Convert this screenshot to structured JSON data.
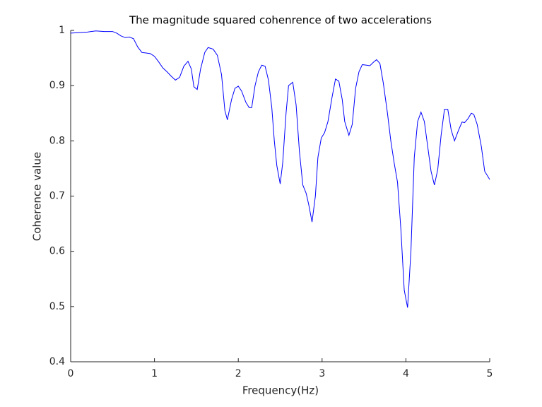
{
  "chart_data": {
    "type": "line",
    "title": "The magnitude squared cohenrence of two accelerations",
    "x_label": "Frequency(Hz)",
    "y_label": "Coherence value",
    "x": [
      0,
      0.1,
      0.2,
      0.3,
      0.4,
      0.5,
      0.55,
      0.6,
      0.65,
      0.7,
      0.75,
      0.8,
      0.85,
      0.9,
      0.95,
      1.0,
      1.05,
      1.1,
      1.15,
      1.2,
      1.25,
      1.3,
      1.35,
      1.4,
      1.44,
      1.47,
      1.51,
      1.55,
      1.6,
      1.64,
      1.7,
      1.75,
      1.8,
      1.84,
      1.87,
      1.92,
      1.96,
      2.0,
      2.04,
      2.09,
      2.13,
      2.16,
      2.2,
      2.24,
      2.28,
      2.32,
      2.36,
      2.4,
      2.43,
      2.46,
      2.5,
      2.53,
      2.57,
      2.6,
      2.65,
      2.69,
      2.73,
      2.77,
      2.81,
      2.84,
      2.88,
      2.92,
      2.95,
      2.99,
      3.03,
      3.07,
      3.12,
      3.16,
      3.2,
      3.24,
      3.27,
      3.32,
      3.36,
      3.4,
      3.44,
      3.48,
      3.53,
      3.57,
      3.61,
      3.65,
      3.69,
      3.73,
      3.78,
      3.82,
      3.86,
      3.9,
      3.94,
      3.98,
      4.02,
      4.06,
      4.1,
      4.14,
      4.18,
      4.22,
      4.26,
      4.3,
      4.34,
      4.38,
      4.42,
      4.46,
      4.5,
      4.54,
      4.58,
      4.63,
      4.67,
      4.7,
      4.74,
      4.78,
      4.81,
      4.85,
      4.9,
      4.94,
      5.0
    ],
    "series": [
      {
        "color": "#0000ff",
        "values": [
          0.995,
          0.996,
          0.997,
          0.999,
          0.998,
          0.998,
          0.995,
          0.99,
          0.987,
          0.988,
          0.985,
          0.97,
          0.96,
          0.959,
          0.958,
          0.953,
          0.943,
          0.932,
          0.925,
          0.917,
          0.91,
          0.915,
          0.935,
          0.944,
          0.93,
          0.898,
          0.893,
          0.93,
          0.96,
          0.969,
          0.966,
          0.955,
          0.92,
          0.855,
          0.838,
          0.875,
          0.895,
          0.899,
          0.89,
          0.87,
          0.86,
          0.86,
          0.9,
          0.925,
          0.937,
          0.935,
          0.91,
          0.86,
          0.8,
          0.755,
          0.722,
          0.76,
          0.85,
          0.9,
          0.906,
          0.865,
          0.78,
          0.72,
          0.705,
          0.685,
          0.653,
          0.7,
          0.77,
          0.805,
          0.815,
          0.835,
          0.88,
          0.912,
          0.908,
          0.875,
          0.835,
          0.81,
          0.83,
          0.895,
          0.925,
          0.938,
          0.937,
          0.936,
          0.942,
          0.947,
          0.94,
          0.905,
          0.85,
          0.8,
          0.76,
          0.725,
          0.64,
          0.53,
          0.498,
          0.6,
          0.77,
          0.835,
          0.852,
          0.835,
          0.79,
          0.745,
          0.72,
          0.748,
          0.81,
          0.857,
          0.857,
          0.82,
          0.8,
          0.82,
          0.834,
          0.833,
          0.84,
          0.85,
          0.848,
          0.83,
          0.79,
          0.745,
          0.73
        ]
      }
    ],
    "xlim": [
      0,
      5
    ],
    "xticks": [
      0,
      1,
      2,
      3,
      4,
      5
    ],
    "ylim": [
      0.4,
      1
    ],
    "yticks": [
      0.4,
      0.5,
      0.6,
      0.7,
      0.8,
      0.9,
      1
    ]
  }
}
